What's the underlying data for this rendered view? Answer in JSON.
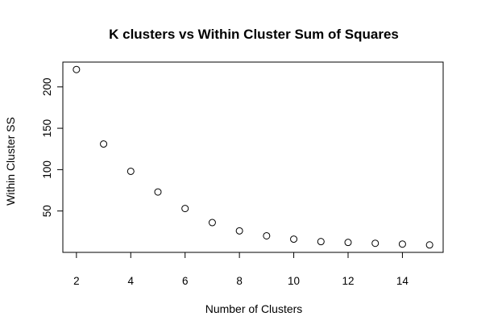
{
  "chart_data": {
    "type": "scatter",
    "title": "K clusters vs Within Cluster Sum of Squares",
    "xlabel": "Number of Clusters",
    "ylabel": "Within Cluster SS",
    "x": [
      2,
      3,
      4,
      5,
      6,
      7,
      8,
      9,
      10,
      11,
      12,
      13,
      14,
      15
    ],
    "y": [
      221,
      131,
      98,
      73,
      53,
      36,
      26,
      20,
      16,
      13,
      12,
      11,
      10,
      9
    ],
    "xlim": [
      1.5,
      15.5
    ],
    "ylim": [
      0,
      230
    ],
    "xticks": [
      "2",
      "4",
      "6",
      "8",
      "10",
      "12",
      "14"
    ],
    "yticks": [
      "50",
      "100",
      "150",
      "200"
    ],
    "grid": false,
    "marker": "open-circle"
  }
}
